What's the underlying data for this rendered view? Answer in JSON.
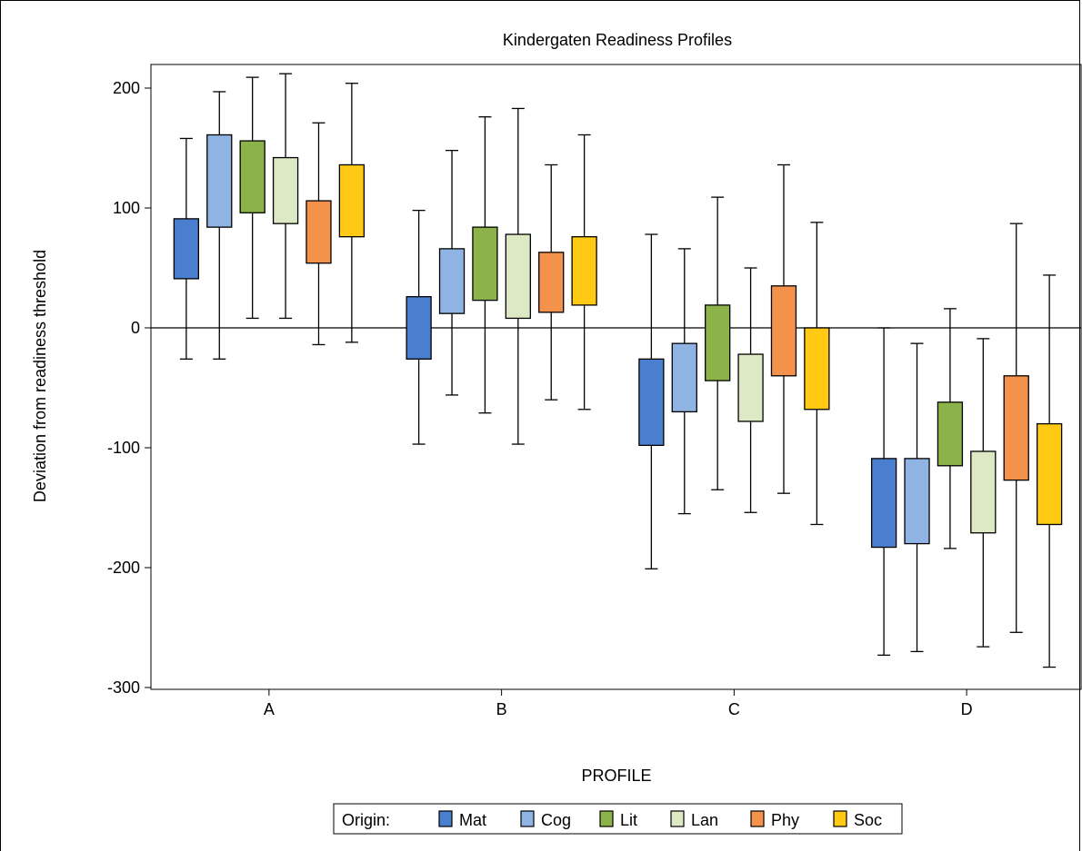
{
  "chart_data": {
    "type": "boxplot",
    "title": "Kindergaten Readiness Profiles",
    "xlabel": "PROFILE",
    "ylabel": "Deviation from readiness threshold",
    "ylim": [
      -300,
      200
    ],
    "yticks": [
      200,
      100,
      0,
      -100,
      -200,
      -300
    ],
    "categories": [
      "A",
      "B",
      "C",
      "D"
    ],
    "reference_line": 0,
    "legend": {
      "title": "Origin:",
      "placement": "bottom-center"
    },
    "series": [
      {
        "name": "Mat",
        "color": "#4a7fd0",
        "boxes": [
          {
            "min": -26,
            "q1": 41,
            "q3": 91,
            "max": 158
          },
          {
            "min": -97,
            "q1": -26,
            "q3": 26,
            "max": 98
          },
          {
            "min": -201,
            "q1": -98,
            "q3": -26,
            "max": 78
          },
          {
            "min": -273,
            "q1": -183,
            "q3": -109,
            "max": 0
          }
        ]
      },
      {
        "name": "Cog",
        "color": "#8fb3e3",
        "boxes": [
          {
            "min": -26,
            "q1": 84,
            "q3": 161,
            "max": 197
          },
          {
            "min": -56,
            "q1": 12,
            "q3": 66,
            "max": 148
          },
          {
            "min": -155,
            "q1": -70,
            "q3": -13,
            "max": 66
          },
          {
            "min": -270,
            "q1": -180,
            "q3": -109,
            "max": -13
          }
        ]
      },
      {
        "name": "Lit",
        "color": "#8bb34a",
        "boxes": [
          {
            "min": 8,
            "q1": 96,
            "q3": 156,
            "max": 209
          },
          {
            "min": -71,
            "q1": 23,
            "q3": 84,
            "max": 176
          },
          {
            "min": -135,
            "q1": -44,
            "q3": 19,
            "max": 109
          },
          {
            "min": -184,
            "q1": -115,
            "q3": -62,
            "max": 16
          }
        ]
      },
      {
        "name": "Lan",
        "color": "#dce9c4",
        "boxes": [
          {
            "min": 8,
            "q1": 87,
            "q3": 142,
            "max": 212
          },
          {
            "min": -97,
            "q1": 8,
            "q3": 78,
            "max": 183
          },
          {
            "min": -154,
            "q1": -78,
            "q3": -22,
            "max": 50
          },
          {
            "min": -266,
            "q1": -171,
            "q3": -103,
            "max": -9
          }
        ]
      },
      {
        "name": "Phy",
        "color": "#f4914b",
        "boxes": [
          {
            "min": -14,
            "q1": 54,
            "q3": 106,
            "max": 171
          },
          {
            "min": -60,
            "q1": 13,
            "q3": 63,
            "max": 136
          },
          {
            "min": -138,
            "q1": -40,
            "q3": 35,
            "max": 136
          },
          {
            "min": -254,
            "q1": -127,
            "q3": -40,
            "max": 87
          }
        ]
      },
      {
        "name": "Soc",
        "color": "#ffc914",
        "boxes": [
          {
            "min": -12,
            "q1": 76,
            "q3": 136,
            "max": 204
          },
          {
            "min": -68,
            "q1": 19,
            "q3": 76,
            "max": 161
          },
          {
            "min": -164,
            "q1": -68,
            "q3": 0,
            "max": 88
          },
          {
            "min": -283,
            "q1": -164,
            "q3": -80,
            "max": 44
          }
        ]
      }
    ]
  }
}
